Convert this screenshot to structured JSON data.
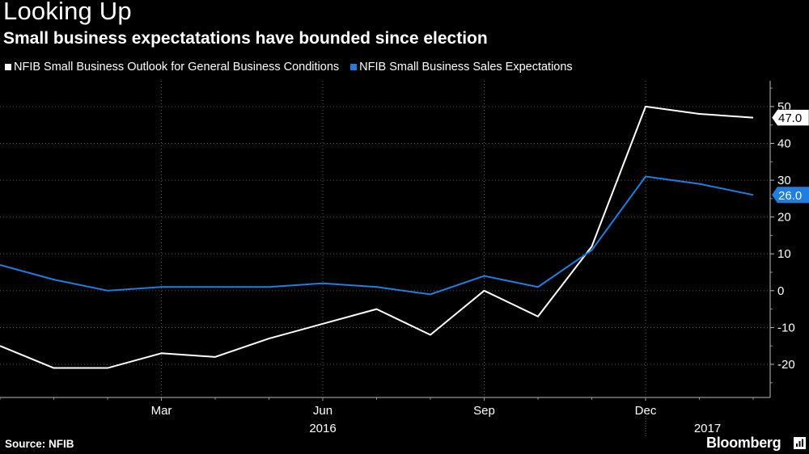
{
  "title": "Looking Up",
  "subtitle": "Small business expectatations have bounded since election",
  "source": "Source: NFIB",
  "brand": "Bloomberg",
  "brand_icon": "bloomberg-mark-icon",
  "chart_data": {
    "type": "line",
    "x": [
      "2015-12",
      "2016-01",
      "2016-02",
      "2016-03",
      "2016-04",
      "2016-05",
      "2016-06",
      "2016-07",
      "2016-08",
      "2016-09",
      "2016-10",
      "2016-11",
      "2016-12",
      "2017-01",
      "2017-02"
    ],
    "series": [
      {
        "name": "NFIB Small Business Outlook for General Business Conditions",
        "color": "#ffffff",
        "values": [
          -15,
          -21,
          -21,
          -17,
          -18,
          -13,
          -9,
          -5,
          -12,
          0,
          -7,
          12,
          50,
          48,
          47
        ],
        "end_label": "47.0"
      },
      {
        "name": "NFIB Small Business Sales Expectations",
        "color": "#1f7ee0",
        "values": [
          7,
          3,
          0,
          1,
          1,
          1,
          2,
          1,
          -1,
          4,
          1,
          11,
          31,
          29,
          26
        ],
        "end_label": "26.0"
      }
    ],
    "y_ticks": [
      "50",
      "40",
      "30",
      "20",
      "10",
      "0",
      "-10",
      "-20"
    ],
    "y_tick_values": [
      50,
      40,
      30,
      20,
      10,
      0,
      -10,
      -20
    ],
    "ylim": [
      -29,
      57
    ],
    "x_ticks": [
      {
        "label": "Mar",
        "x": "2016-03"
      },
      {
        "label": "Jun",
        "x": "2016-06"
      },
      {
        "label": "Sep",
        "x": "2016-09"
      },
      {
        "label": "Dec",
        "x": "2016-12"
      }
    ],
    "years": [
      {
        "label": "2016",
        "x": "2016-06"
      },
      {
        "label": "2017",
        "x": "2017-01"
      }
    ],
    "year_boundary": "2016-12",
    "grid": true,
    "axis_side": "right",
    "legend": "top-left"
  }
}
